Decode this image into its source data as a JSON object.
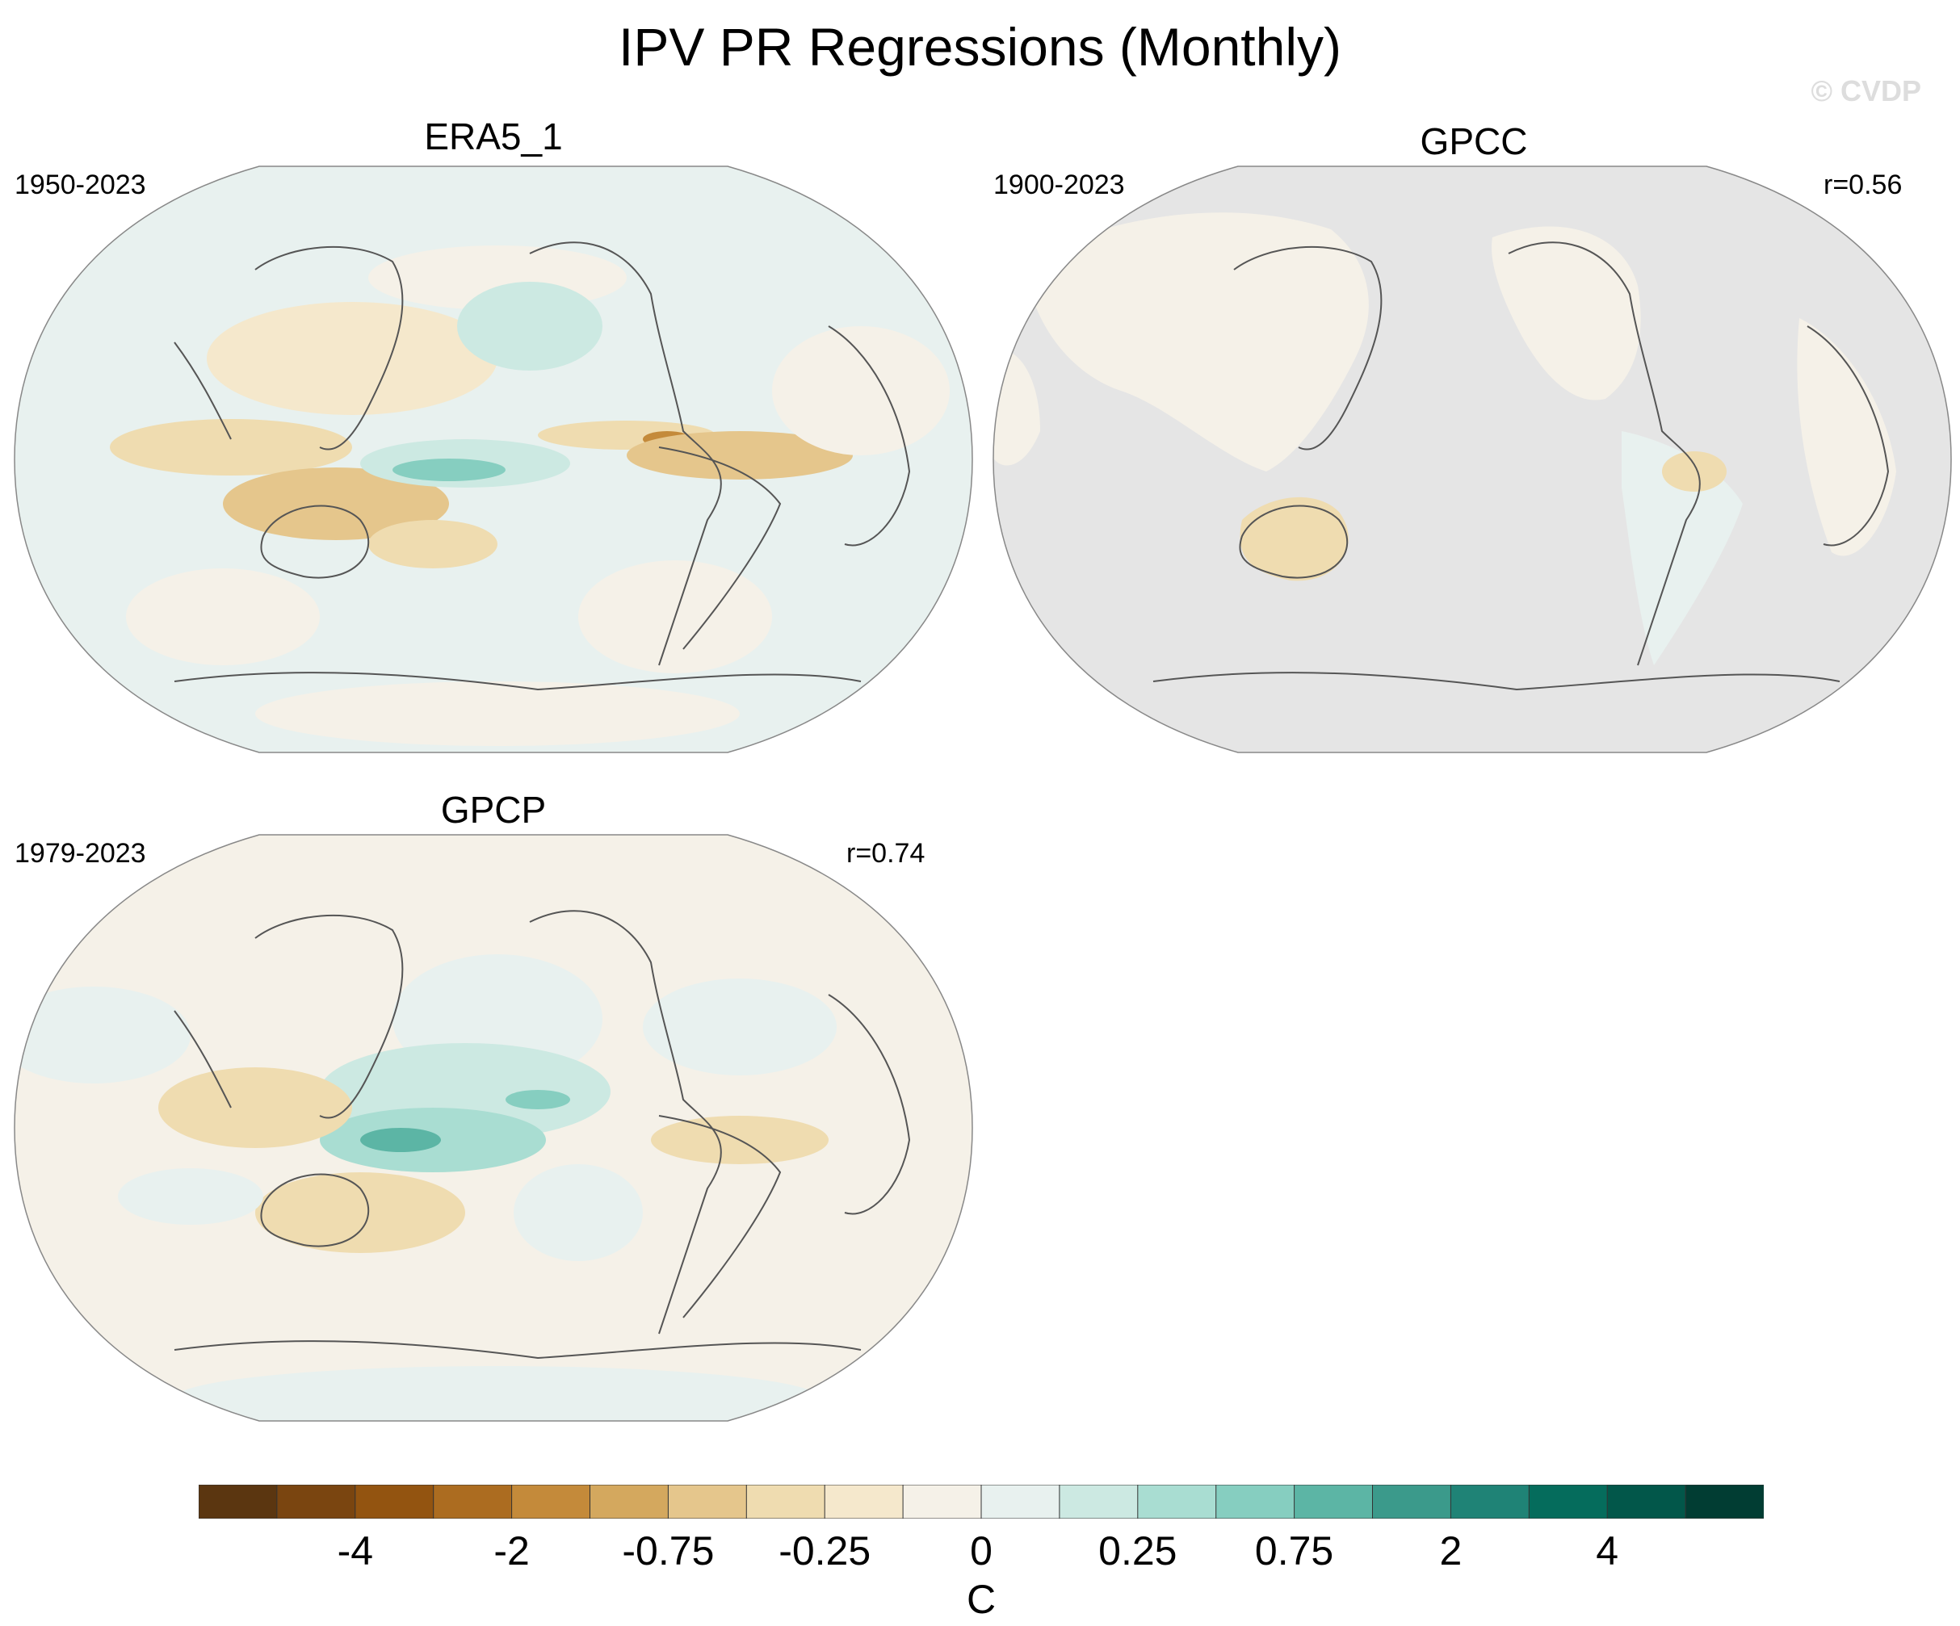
{
  "title": "IPV PR Regressions (Monthly)",
  "watermark": "© CVDP",
  "panels": [
    {
      "name": "ERA5_1",
      "period": "1950-2023",
      "r": ""
    },
    {
      "name": "GPCC",
      "period": "1900-2023",
      "r": "r=0.56"
    },
    {
      "name": "GPCP",
      "period": "1979-2023",
      "r": "r=0.74"
    }
  ],
  "colorbar": {
    "colors": [
      "#5b3610",
      "#7a4510",
      "#935410",
      "#ac6c20",
      "#c48a3a",
      "#d4a85e",
      "#e5c68c",
      "#efdcb0",
      "#f5e8cc",
      "#f5f1e8",
      "#e8f1ef",
      "#cce9e2",
      "#a9ddd2",
      "#86cec0",
      "#5cb5a5",
      "#3b9a8b",
      "#1f8376",
      "#056c5c",
      "#02574a",
      "#013d33"
    ],
    "tick_labels": [
      "-4",
      "-2",
      "-0.75",
      "-0.25",
      "0",
      "0.25",
      "0.75",
      "2",
      "4"
    ],
    "unit": "C"
  },
  "colors": {
    "ocean_light": "#e8f1ef",
    "land_missing": "#e5e5e5",
    "neutral": "#f5f1e8",
    "coast": "#555555"
  }
}
